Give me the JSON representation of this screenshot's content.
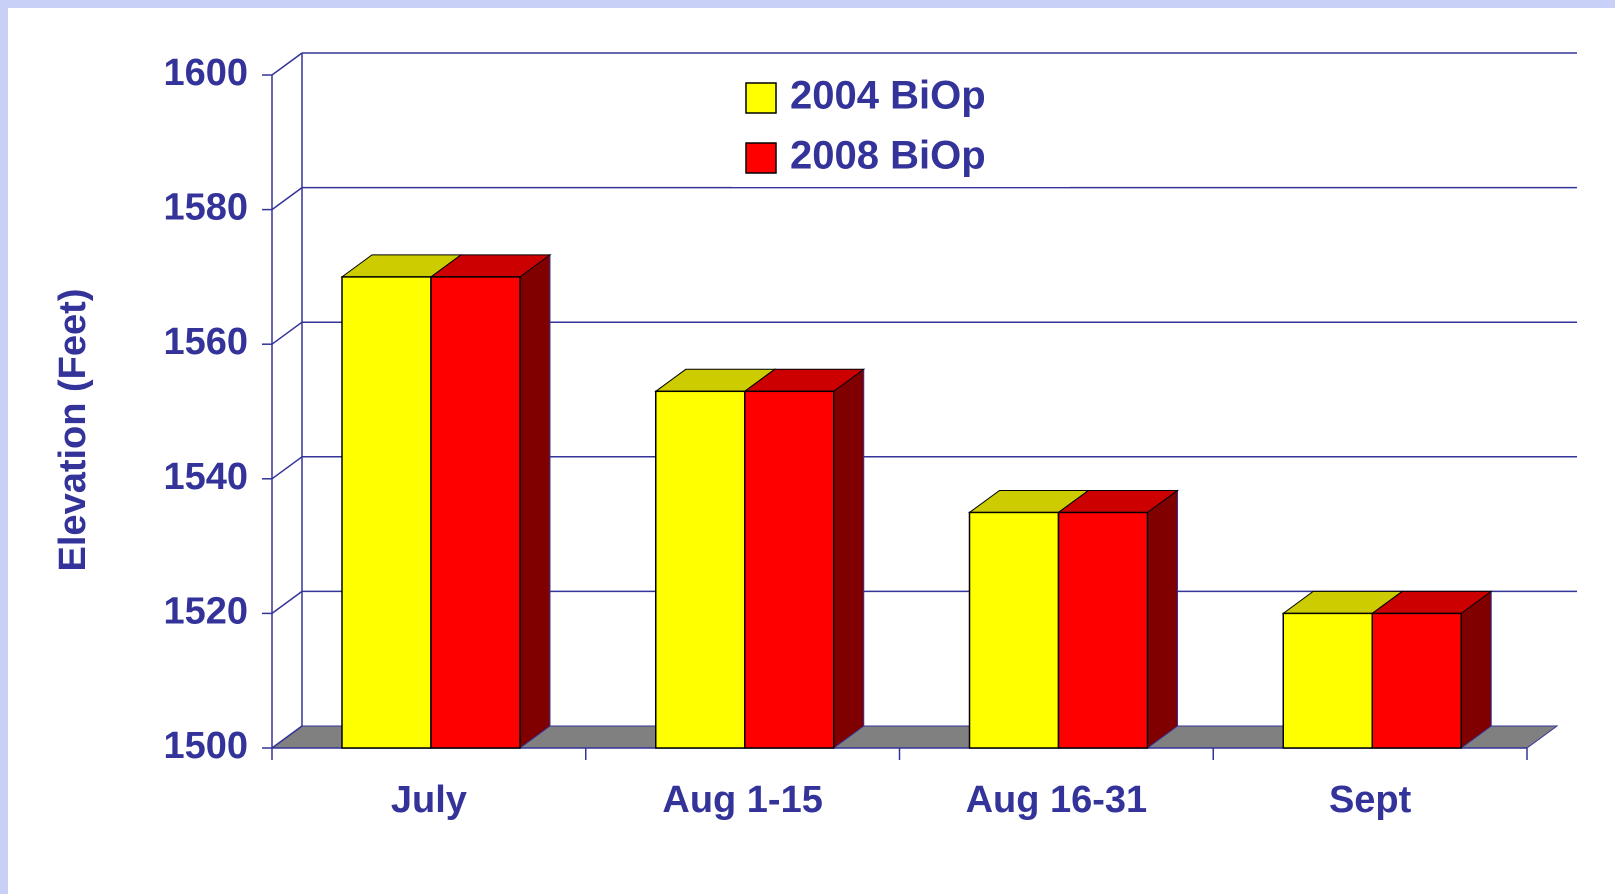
{
  "chart_data": {
    "type": "bar3d",
    "y_axis_label": "Elevation (Feet)",
    "categories": [
      "July",
      "Aug 1-15",
      "Aug 16-31",
      "Sept"
    ],
    "series": [
      {
        "name": "2004 BiOp",
        "color": "#ffff00",
        "values": [
          1570,
          1553,
          1535,
          1520
        ]
      },
      {
        "name": "2008 BiOp",
        "color": "#ff0000",
        "values": [
          1570,
          1553,
          1535,
          1520
        ]
      }
    ],
    "ylim": [
      1500,
      1600
    ],
    "yticks": [
      1500,
      1520,
      1540,
      1560,
      1580,
      1600
    ],
    "grid": true,
    "legend": "top"
  }
}
